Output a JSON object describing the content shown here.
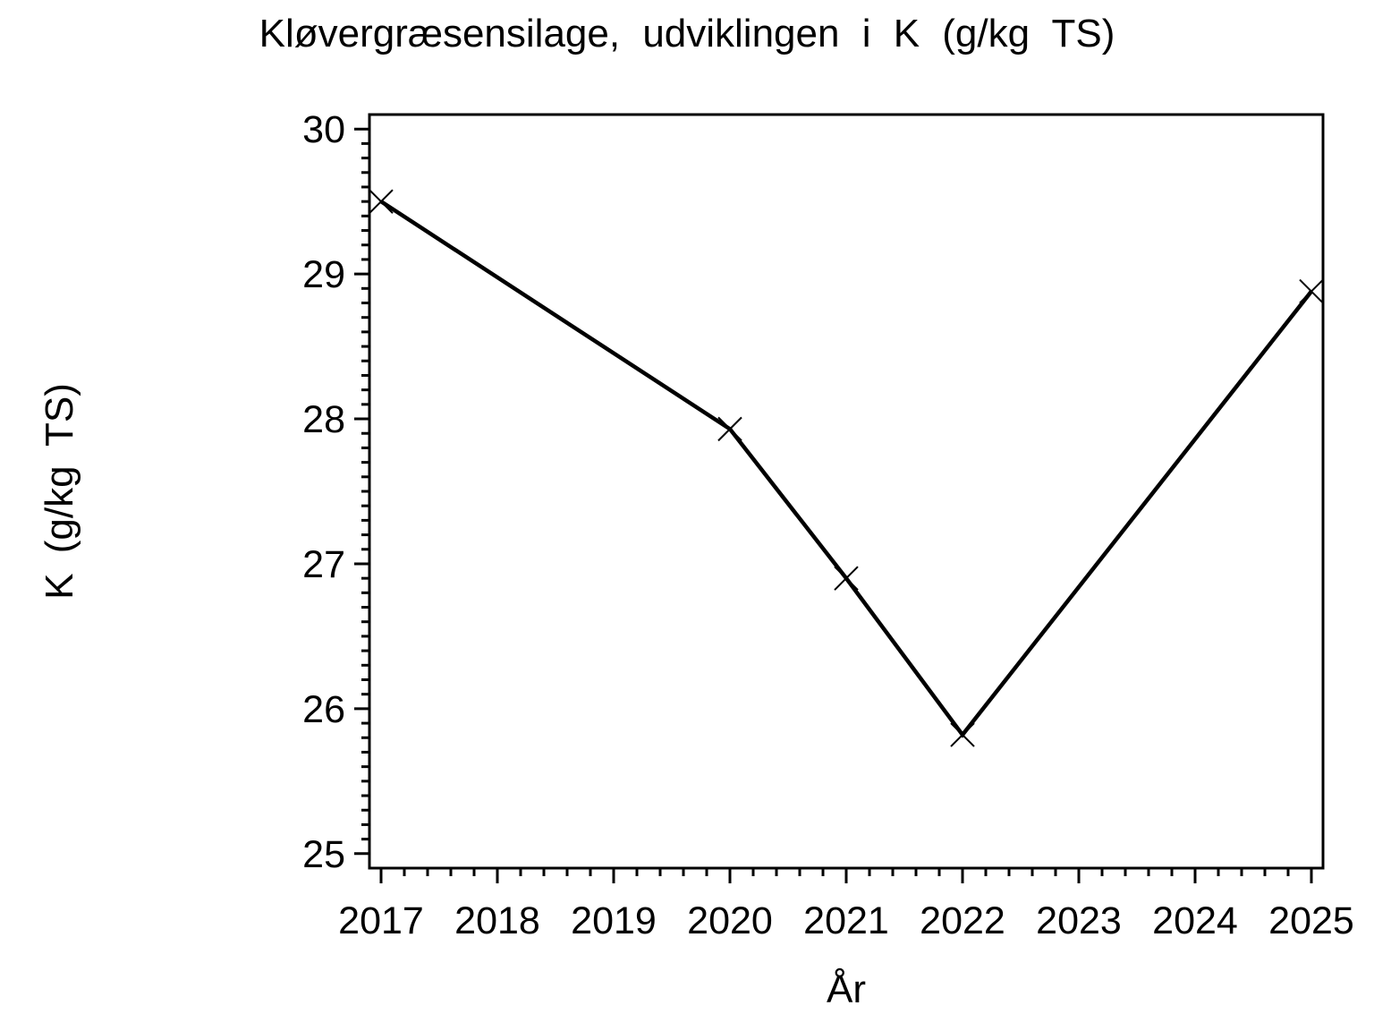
{
  "chart_data": {
    "type": "line",
    "title": "Kløvergræsensilage, udviklingen i K (g/kg TS)",
    "xlabel": "År",
    "ylabel": "K (g/kg TS)",
    "series": [
      {
        "name": "K (g/kg TS)",
        "x": [
          2017,
          2020,
          2021,
          2022,
          2025
        ],
        "values": [
          29.5,
          27.93,
          26.9,
          25.82,
          28.88
        ]
      }
    ],
    "x_ticks": [
      2017,
      2018,
      2019,
      2020,
      2021,
      2022,
      2023,
      2024,
      2025
    ],
    "x_tick_labels": [
      "2017",
      "2018",
      "2019",
      "2020",
      "2021",
      "2022",
      "2023",
      "2024",
      "2025"
    ],
    "y_ticks": [
      25,
      26,
      27,
      28,
      29,
      30
    ],
    "y_tick_labels": [
      "25",
      "26",
      "27",
      "28",
      "29",
      "30"
    ],
    "xlim": [
      2016.9,
      2025.1
    ],
    "ylim": [
      24.9,
      30.1
    ],
    "x_minor_step": 0.2,
    "y_minor_step": 0.1,
    "marker": "x",
    "grid": false,
    "legend": null,
    "line_color": "#000000",
    "axis_color": "#000000",
    "background_color": "#ffffff"
  }
}
